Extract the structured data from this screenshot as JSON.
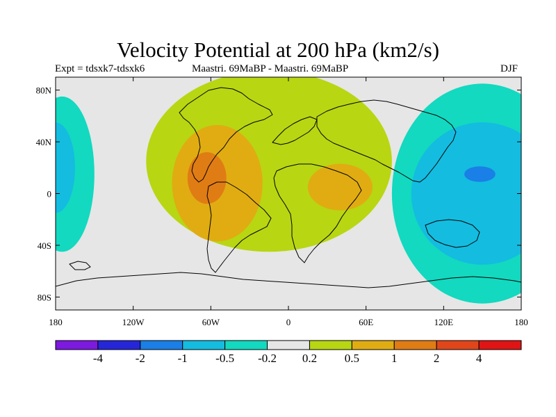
{
  "chart_data": {
    "type": "heatmap",
    "title": "Velocity Potential at 200 hPa (km2/s)",
    "left_string": "Expt = tdsxk7-tdsxk6",
    "center_string": "Maastri.  69MaBP - Maastri.  69MaBP",
    "right_string": "DJF",
    "x_axis": {
      "range": [
        -180,
        180
      ],
      "ticks": [
        -180,
        -120,
        -60,
        0,
        60,
        120,
        180
      ],
      "tick_labels": [
        "180",
        "120W",
        "60W",
        "0",
        "60E",
        "120E",
        "180"
      ]
    },
    "y_axis": {
      "range": [
        -90,
        90
      ],
      "ticks": [
        80,
        40,
        0,
        -40,
        -80
      ],
      "tick_labels": [
        "80N",
        "40N",
        "0",
        "40S",
        "80S"
      ]
    },
    "colorbar": {
      "colors": [
        "#7c1ae0",
        "#2626d9",
        "#1a7fe6",
        "#14bce0",
        "#12d9c0",
        "#e6e6e6",
        "#b8d612",
        "#e0ac12",
        "#e07c14",
        "#e0461a",
        "#e01414"
      ],
      "labels": [
        "-4",
        "-2",
        "-1",
        "-0.5",
        "-0.2",
        "0.2",
        "0.5",
        "1",
        "2",
        "4"
      ]
    },
    "regions": [
      {
        "level": 1,
        "color": "#b8d612",
        "label": "0.2 to 0.5",
        "center": [
          -15,
          25
        ],
        "halfwidth": [
          95,
          70
        ]
      },
      {
        "level": 2,
        "color": "#e0ac12",
        "label": "0.5 to 1",
        "center": [
          -55,
          8
        ],
        "halfwidth": [
          35,
          45
        ]
      },
      {
        "level": 2,
        "color": "#e0ac12",
        "label": "0.5 to 1",
        "center": [
          40,
          5
        ],
        "halfwidth": [
          25,
          18
        ]
      },
      {
        "level": 3,
        "color": "#e07c14",
        "label": "1 to 2",
        "center": [
          -63,
          12
        ],
        "halfwidth": [
          15,
          20
        ]
      },
      {
        "level": -1,
        "color": "#12d9c0",
        "label": "-0.5 to -0.2",
        "center": [
          150,
          0
        ],
        "halfwidth": [
          70,
          85
        ]
      },
      {
        "level": -1,
        "color": "#12d9c0",
        "label": "-0.5 to -0.2",
        "center": [
          -175,
          15
        ],
        "halfwidth": [
          25,
          60
        ]
      },
      {
        "level": -2,
        "color": "#14bce0",
        "label": "-1 to -0.5",
        "center": [
          150,
          0
        ],
        "halfwidth": [
          55,
          55
        ]
      },
      {
        "level": -2,
        "color": "#14bce0",
        "label": "-1 to -0.5",
        "center": [
          -180,
          20
        ],
        "halfwidth": [
          15,
          35
        ]
      },
      {
        "level": -3,
        "color": "#1a7fe6",
        "label": "-2 to -1",
        "center": [
          148,
          15
        ],
        "halfwidth": [
          12,
          6
        ]
      }
    ]
  }
}
